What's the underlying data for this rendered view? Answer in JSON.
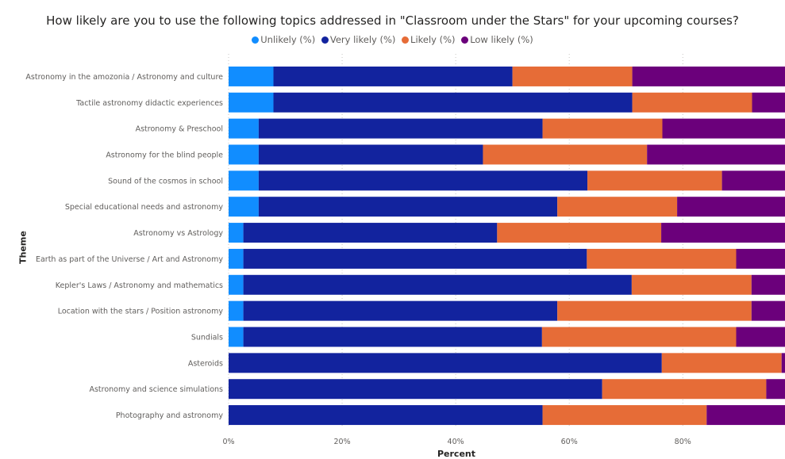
{
  "chart_data": {
    "type": "bar",
    "orientation": "horizontal",
    "stacked": true,
    "title": "How likely are you to use the following topics addressed in \"Classroom under the Stars\" for your upcoming courses?",
    "xlabel": "Percent",
    "ylabel": "Theme",
    "xlim": [
      0,
      98
    ],
    "x_ticks": [
      "0%",
      "20%",
      "40%",
      "60%",
      "80%"
    ],
    "x_tick_values": [
      0,
      20,
      40,
      60,
      80
    ],
    "grid": true,
    "legend_position": "top-center",
    "categories": [
      "Astronomy in the amozonia / Astronomy and culture",
      "Tactile astronomy didactic experiences",
      "Astronomy & Preschool",
      "Astronomy for the blind people",
      "Sound of the cosmos in school",
      "Special educational needs and astronomy",
      "Astronomy vs Astrology",
      "Earth as part of the Universe / Art and Astronomy",
      "Kepler's Laws / Astronomy and mathematics",
      "Location with the stars / Position astronomy",
      "Sundials",
      "Asteroids",
      "Astronomy and science simulations",
      "Photography and astronomy"
    ],
    "series": [
      {
        "name": "Unlikely (%)",
        "color": "#118DFF",
        "values": [
          7.9,
          7.9,
          5.3,
          5.3,
          5.3,
          5.3,
          2.6,
          2.6,
          2.6,
          2.6,
          2.6,
          0,
          0,
          0
        ]
      },
      {
        "name": "Very likely (%)",
        "color": "#12239E",
        "values": [
          42.1,
          63.2,
          50.0,
          39.5,
          57.9,
          52.6,
          44.7,
          60.5,
          68.4,
          55.3,
          52.6,
          76.3,
          65.8,
          55.3
        ]
      },
      {
        "name": "Likely (%)",
        "color": "#E66C37",
        "values": [
          21.1,
          21.1,
          21.1,
          28.9,
          23.7,
          21.1,
          28.9,
          26.3,
          21.1,
          34.2,
          34.2,
          21.1,
          28.9,
          28.9
        ]
      },
      {
        "name": "Low likely (%)",
        "color": "#6B007B",
        "values": [
          28.9,
          7.9,
          23.7,
          26.3,
          13.2,
          21.1,
          23.7,
          10.5,
          7.9,
          7.9,
          10.5,
          2.6,
          5.3,
          15.8
        ]
      }
    ]
  }
}
